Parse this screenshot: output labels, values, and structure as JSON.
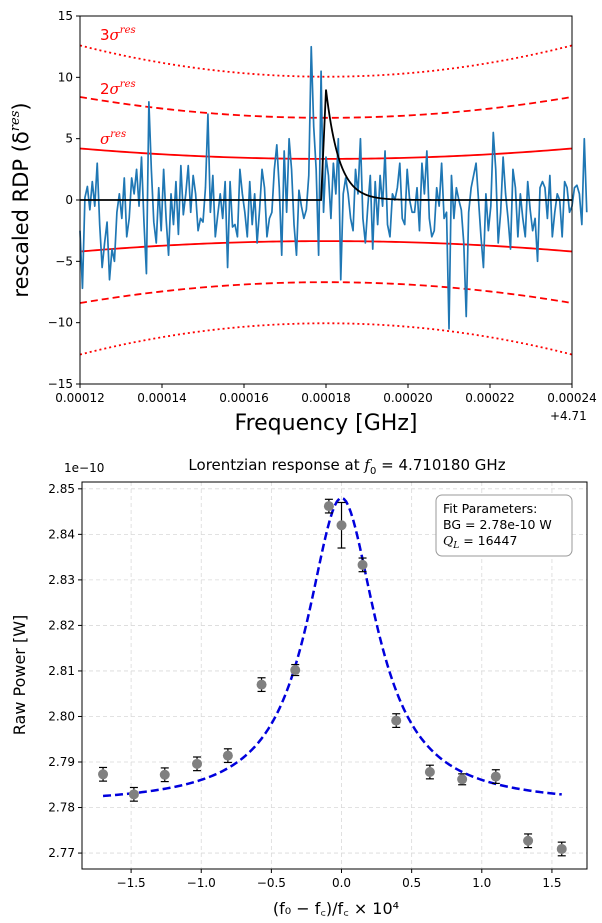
{
  "chart_data": [
    {
      "type": "line",
      "xlabel": "Frequency [GHz]",
      "ylabel": "rescaled RDP (δ",
      "ylabel_sup": "res",
      "ylabel_close": ")",
      "x_offset_label": "+4.71",
      "xlim": [
        0.00012,
        0.00024
      ],
      "ylim": [
        -15,
        15
      ],
      "x_ticks": [
        "0.00012",
        "0.00014",
        "0.00016",
        "0.00018",
        "0.00020",
        "0.00022",
        "0.00024"
      ],
      "y_ticks": [
        "−15",
        "−10",
        "−5",
        "0",
        "5",
        "10",
        "15"
      ],
      "band_labels": [
        {
          "prefix": "",
          "sym": "σ",
          "sup": "res"
        },
        {
          "prefix": "2",
          "sym": "σ",
          "sup": "res"
        },
        {
          "prefix": "3",
          "sym": "σ",
          "sup": "res"
        }
      ],
      "sigma_band": {
        "sigma_at_center": 3.35,
        "sigma_at_edges": 4.2,
        "center": 0.00018,
        "color": "#ff0000"
      },
      "lorentzian": {
        "center": 0.00018,
        "peak": 9.0,
        "color": "#000000"
      },
      "series": [
        {
          "color": "#1f77b4",
          "x_start": 0.00012,
          "x_step": 6e-07,
          "values": [
            -2.5,
            -7.2,
            0.2,
            1.1,
            -0.8,
            1.5,
            -0.5,
            3.0,
            -2.0,
            -5.5,
            -3.5,
            -1.8,
            -6.5,
            -4.0,
            -5.0,
            -1.0,
            0.5,
            -1.5,
            1.8,
            -3.0,
            -1.5,
            1.8,
            0.5,
            2.5,
            -0.5,
            3.5,
            -1.8,
            -6.0,
            8.0,
            2.5,
            -1.8,
            -3.5,
            1.0,
            -2.5,
            2.5,
            -1.5,
            -4.5,
            0.5,
            -2.0,
            1.5,
            -2.8,
            2.8,
            -1.2,
            0.5,
            2.8,
            -1.0,
            2.0,
            0.5,
            -2.5,
            -1.5,
            -1.8,
            1.0,
            7.0,
            -1.0,
            2.0,
            -3.0,
            -1.2,
            0.5,
            -1.5,
            1.5,
            -5.5,
            1.5,
            -2.2,
            -2.0,
            -3.0,
            2.5,
            0.5,
            -1.0,
            -3.0,
            1.5,
            -2.0,
            0.5,
            -3.5,
            -0.8,
            2.5,
            1.0,
            -3.0,
            -1.5,
            -1.0,
            2.5,
            4.5,
            1.0,
            -4.5,
            4.0,
            -1.0,
            5.0,
            2.5,
            -2.0,
            -4.5,
            0.8,
            -0.5,
            -1.5,
            -0.8,
            2.0,
            12.5,
            6.0,
            2.5,
            -4.5,
            10.5,
            -1.0,
            3.5,
            2.0,
            -1.5,
            3.0,
            0.5,
            5.0,
            -6.5,
            0.5,
            1.8,
            0.5,
            -1.5,
            -2.5,
            2.5,
            0.5,
            5.0,
            -1.5,
            -3.5,
            -0.5,
            2.0,
            -4.0,
            1.5,
            -2.0,
            2.0,
            -0.5,
            4.0,
            -2.0,
            -3.0,
            0.5,
            0.0,
            1.0,
            3.0,
            -1.5,
            -2.0,
            2.5,
            0.0,
            -1.0,
            -1.0,
            1.0,
            -2.5,
            3.0,
            0.5,
            4.0,
            -1.5,
            -3.0,
            -2.5,
            1.0,
            -0.5,
            3.0,
            -1.5,
            -1.0,
            -10.5,
            2.0,
            -1.5,
            1.0,
            0.0,
            -0.8,
            -3.5,
            -9.5,
            -1.0,
            1.0,
            2.0,
            3.0,
            0.0,
            -3.0,
            -5.5,
            0.5,
            -2.5,
            -0.5,
            5.5,
            2.5,
            -3.5,
            -1.0,
            3.5,
            0.5,
            -1.5,
            -4.0,
            2.5,
            1.0,
            -3.0,
            0.5,
            -1.5,
            -3.0,
            1.5,
            -0.8,
            -2.5,
            -1.5,
            -5.0,
            1.0,
            1.5,
            1.0,
            -1.5,
            2.0,
            -3.0,
            -1.0,
            0.5,
            0.0,
            -3.0,
            1.5,
            1.0,
            -1.0,
            -0.5,
            1.0,
            1.2,
            0.5,
            -2.0,
            5.0,
            -1.0
          ]
        }
      ]
    },
    {
      "type": "scatter",
      "title": "Lorentzian response at ",
      "title_math": "f",
      "title_math_sub": "0",
      "title_value": " = 4.710180 GHz",
      "ylabel": "Raw Power [W]",
      "xlabel_text": "(f",
      "xlabel_full": "(f₀ − f꜀)/f꜀ × 10⁴",
      "y_offset_label": "1e−10",
      "xlim": [
        -1.85,
        1.75
      ],
      "ylim": [
        2.7665,
        2.8515
      ],
      "x_ticks": [
        "−1.5",
        "−1.0",
        "−0.5",
        "0.0",
        "0.5",
        "1.0",
        "1.5"
      ],
      "x_tick_values": [
        -1.5,
        -1.0,
        -0.5,
        0.0,
        0.5,
        1.0,
        1.5
      ],
      "y_ticks": [
        "2.77",
        "2.78",
        "2.79",
        "2.80",
        "2.81",
        "2.82",
        "2.83",
        "2.84",
        "2.85"
      ],
      "y_tick_values": [
        2.77,
        2.78,
        2.79,
        2.8,
        2.81,
        2.82,
        2.83,
        2.84,
        2.85
      ],
      "points": {
        "color": "#808080",
        "x": [
          -1.7,
          -1.48,
          -1.26,
          -1.03,
          -0.81,
          -0.57,
          -0.33,
          -0.09,
          0.0,
          0.15,
          0.39,
          0.63,
          0.86,
          1.1,
          1.33,
          1.57
        ],
        "y": [
          2.7873,
          2.7829,
          2.7872,
          2.7896,
          2.7914,
          2.807,
          2.8102,
          2.8462,
          2.842,
          2.8333,
          2.7991,
          2.7878,
          2.7862,
          2.7868,
          2.7727,
          2.7709
        ],
        "err": [
          0.0015,
          0.0015,
          0.0015,
          0.0015,
          0.0015,
          0.0015,
          0.0012,
          0.0015,
          0.005,
          0.0015,
          0.0015,
          0.0015,
          0.0012,
          0.0015,
          0.0015,
          0.0015
        ]
      },
      "fit": {
        "color": "#0000dd",
        "baseline": 2.7805,
        "amplitude": 0.0675,
        "center": 0.0,
        "hwhm": 0.3,
        "x_range": [
          -1.7,
          1.57
        ]
      },
      "legend_box": {
        "line1": "Fit Parameters:",
        "line2": "BG = 2.78e-10 W",
        "line3_sym": "Q",
        "line3_sub": "L",
        "line3_value": " = 16447"
      }
    }
  ]
}
